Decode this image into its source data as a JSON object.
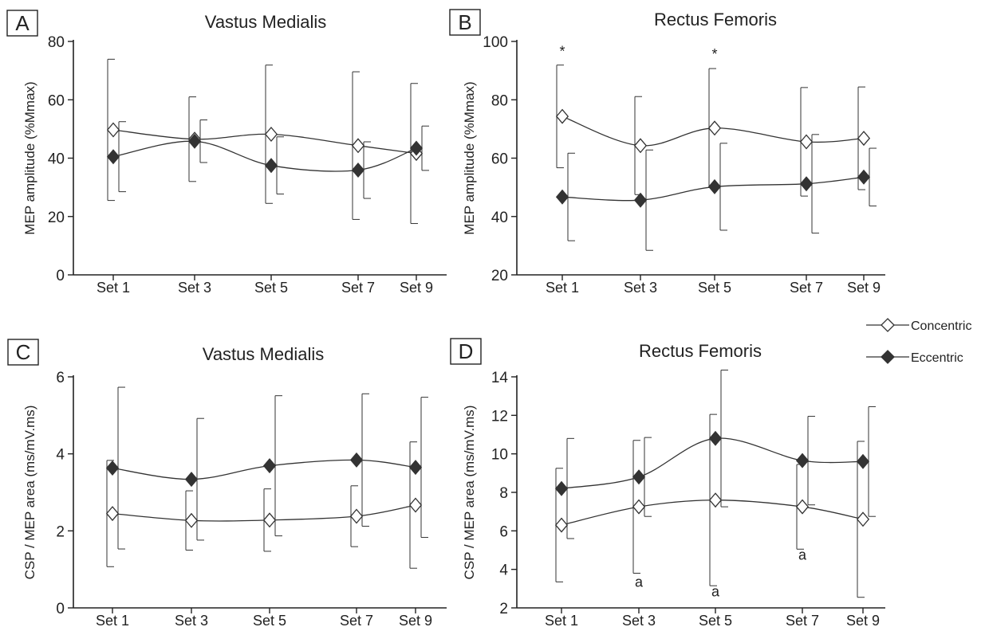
{
  "legend": {
    "placement": "right, between top and bottom rows",
    "entries": [
      {
        "key": "concentric",
        "label": "Concentric",
        "marker": "open-diamond"
      },
      {
        "key": "eccentric",
        "label": "Eccentric",
        "marker": "filled-diamond"
      }
    ]
  },
  "chart_data": [
    {
      "panel": "A",
      "type": "line",
      "title": "Vastus Medialis",
      "ylabel": "MEP amplitude (%Mmax)",
      "xlabel": "",
      "categories": [
        "Set 1",
        "Set 3",
        "Set 5",
        "Set 7",
        "Set 9"
      ],
      "ylim": [
        0,
        80
      ],
      "yticks": [
        0,
        20,
        40,
        60,
        80
      ],
      "grid": false,
      "series": [
        {
          "key": "concentric",
          "name": "Concentric",
          "values": [
            49.7,
            46.5,
            48.2,
            44.3,
            41.6
          ],
          "err": [
            24.2,
            14.5,
            23.7,
            25.3,
            24.0
          ]
        },
        {
          "key": "eccentric",
          "name": "Eccentric",
          "values": [
            40.5,
            45.8,
            37.5,
            35.9,
            43.4
          ],
          "err": [
            12.0,
            7.3,
            9.8,
            9.7,
            7.6
          ]
        }
      ],
      "annotations": []
    },
    {
      "panel": "B",
      "type": "line",
      "title": "Rectus Femoris",
      "ylabel": "MEP amplitude (%Mmax)",
      "xlabel": "",
      "categories": [
        "Set 1",
        "Set 3",
        "Set 5",
        "Set 7",
        "Set 9"
      ],
      "ylim": [
        20,
        100
      ],
      "yticks": [
        20,
        40,
        60,
        80,
        100
      ],
      "grid": false,
      "series": [
        {
          "key": "concentric",
          "name": "Concentric",
          "values": [
            74.3,
            64.3,
            70.3,
            65.6,
            66.8
          ],
          "err": [
            17.6,
            16.8,
            20.4,
            18.6,
            17.6
          ]
        },
        {
          "key": "eccentric",
          "name": "Eccentric",
          "values": [
            46.7,
            45.6,
            50.2,
            51.2,
            53.5
          ],
          "err": [
            15.0,
            17.2,
            14.9,
            16.9,
            9.9
          ]
        }
      ],
      "annotations": [
        {
          "text": "*",
          "category": "Set 1",
          "y": 95
        },
        {
          "text": "*",
          "category": "Set 5",
          "y": 94
        }
      ]
    },
    {
      "panel": "C",
      "type": "line",
      "title": "Vastus Medialis",
      "ylabel": "CSP / MEP area (ms/mV.ms)",
      "xlabel": "",
      "categories": [
        "Set 1",
        "Set 3",
        "Set 5",
        "Set 7",
        "Set 9"
      ],
      "ylim": [
        0,
        6
      ],
      "yticks": [
        0,
        2,
        4,
        6
      ],
      "grid": false,
      "series": [
        {
          "key": "concentric",
          "name": "Concentric",
          "values": [
            2.45,
            2.27,
            2.28,
            2.38,
            2.67
          ],
          "err": [
            1.38,
            0.77,
            0.81,
            0.79,
            1.64
          ]
        },
        {
          "key": "eccentric",
          "name": "Eccentric",
          "values": [
            3.63,
            3.34,
            3.69,
            3.84,
            3.65
          ],
          "err": [
            2.1,
            1.58,
            1.82,
            1.72,
            1.82
          ]
        }
      ],
      "annotations": []
    },
    {
      "panel": "D",
      "type": "line",
      "title": "Rectus Femoris",
      "ylabel": "CSP / MEP area (ms/mV.ms)",
      "xlabel": "",
      "categories": [
        "Set 1",
        "Set 3",
        "Set 5",
        "Set 7",
        "Set 9"
      ],
      "ylim": [
        2,
        14
      ],
      "yticks": [
        2,
        4,
        6,
        8,
        10,
        12,
        14
      ],
      "grid": false,
      "series": [
        {
          "key": "concentric",
          "name": "Concentric",
          "values": [
            6.3,
            7.25,
            7.6,
            7.25,
            6.6
          ],
          "err": [
            2.95,
            3.45,
            4.45,
            2.2,
            4.05
          ]
        },
        {
          "key": "eccentric",
          "name": "Eccentric",
          "values": [
            8.2,
            8.8,
            10.8,
            9.65,
            9.6
          ],
          "err": [
            2.6,
            2.05,
            3.55,
            2.3,
            2.85
          ]
        }
      ],
      "annotations": [
        {
          "text": "a",
          "category": "Set 3",
          "y": 3.1
        },
        {
          "text": "a",
          "category": "Set 5",
          "y": 2.6
        },
        {
          "text": "a",
          "category": "Set 7",
          "y": 4.5
        }
      ]
    }
  ]
}
